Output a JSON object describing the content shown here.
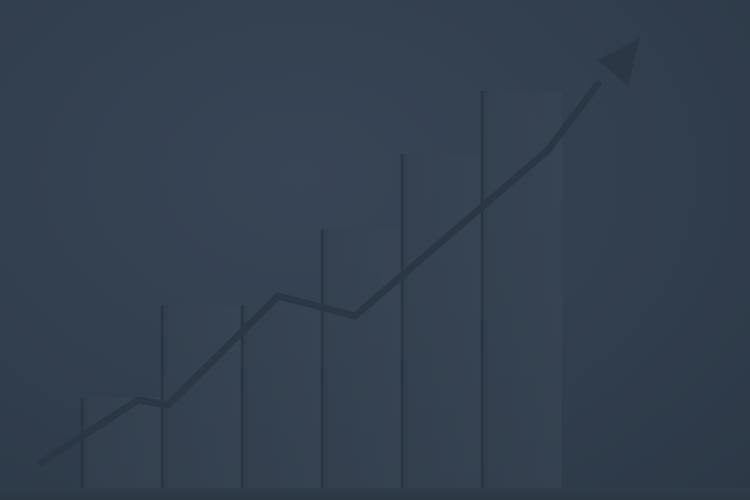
{
  "scene": {
    "description_icon": "growth-arrow-icon",
    "colors": {
      "background": "#323e4c",
      "bar_face": "#36424f",
      "bar_edge": "#2a3541",
      "arrow": "#2b3745"
    },
    "bars": [
      {
        "level": 0.22
      },
      {
        "level": 0.44
      },
      {
        "level": 0.44
      },
      {
        "level": 0.62
      },
      {
        "level": 0.8
      },
      {
        "level": 0.95
      }
    ]
  }
}
